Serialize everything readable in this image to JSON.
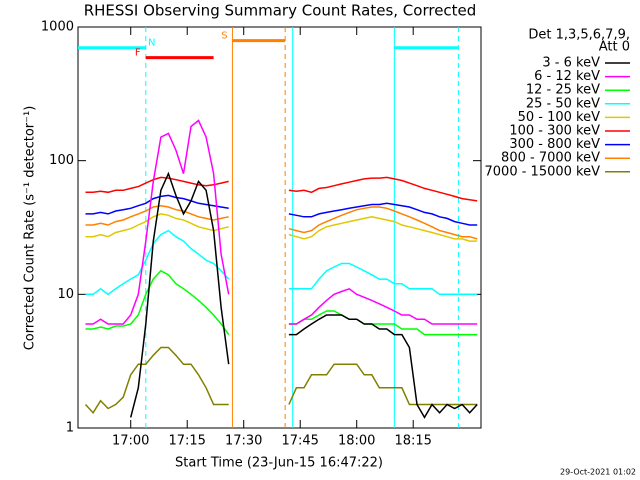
{
  "chart_data": {
    "type": "line",
    "title": "RHESSI Observing Summary Count Rates, Corrected",
    "xlabel": "Start Time (23-Jun-15 16:47:22)",
    "ylabel": "Corrected Count Rate (s⁻¹ detector⁻¹)",
    "legend_title": [
      "Det 1,3,5,6,7,9,",
      "Att 0"
    ],
    "footer": "29-Oct-2021 01:02",
    "log_y": true,
    "legend": "right",
    "xlim": [
      46,
      153
    ],
    "ylim": [
      1,
      1000
    ],
    "xticks": [
      {
        "value": 60,
        "label": "17:00"
      },
      {
        "value": 75,
        "label": "17:15"
      },
      {
        "value": 90,
        "label": "17:30"
      },
      {
        "value": 105,
        "label": "17:45"
      },
      {
        "value": 120,
        "label": "18:00"
      },
      {
        "value": 135,
        "label": "18:15"
      }
    ],
    "yticks": [
      1,
      10,
      100,
      1000
    ],
    "x": [
      48,
      50,
      52,
      54,
      56,
      58,
      60,
      62,
      64,
      66,
      68,
      70,
      72,
      74,
      76,
      78,
      80,
      82,
      84,
      86,
      88,
      90,
      92,
      94,
      96,
      98,
      100,
      102,
      104,
      106,
      108,
      110,
      112,
      114,
      116,
      118,
      120,
      122,
      124,
      126,
      128,
      130,
      132,
      134,
      136,
      138,
      140,
      142,
      144,
      146,
      148,
      150,
      152
    ],
    "series": [
      {
        "name": "3 - 6 keV",
        "color": "#000000",
        "values": [
          null,
          null,
          null,
          null,
          null,
          null,
          1.2,
          2,
          6,
          25,
          60,
          80,
          55,
          40,
          50,
          70,
          60,
          30,
          8,
          3,
          null,
          null,
          null,
          null,
          null,
          null,
          null,
          5,
          5,
          5.5,
          6,
          6.5,
          7,
          7,
          7,
          6.5,
          6.5,
          6,
          6,
          5.5,
          5.5,
          5,
          5,
          4,
          1.5,
          1.2,
          1.5,
          1.3,
          1.5,
          1.4,
          1.5,
          1.3,
          1.5
        ]
      },
      {
        "name": "6 - 12 keV",
        "color": "#ff00ff",
        "values": [
          6,
          6,
          6.5,
          6,
          6,
          6,
          7,
          10,
          25,
          70,
          150,
          160,
          120,
          80,
          180,
          200,
          150,
          80,
          20,
          10,
          null,
          null,
          null,
          null,
          null,
          null,
          null,
          6,
          6,
          6.5,
          7,
          8,
          9,
          10,
          10.5,
          11,
          10,
          9.5,
          9,
          8.5,
          8,
          7.5,
          7,
          7,
          6.5,
          6.5,
          6,
          6,
          6,
          6,
          6,
          6,
          6
        ]
      },
      {
        "name": "12 - 25 keV",
        "color": "#00ff00",
        "values": [
          5.5,
          5.5,
          5.7,
          5.5,
          5.8,
          5.8,
          6,
          7,
          10,
          13,
          15,
          14,
          12,
          11,
          10,
          9,
          8,
          7,
          6,
          5,
          null,
          null,
          null,
          null,
          null,
          null,
          null,
          6,
          6,
          6.5,
          6.5,
          7,
          7.5,
          7.5,
          7,
          6.5,
          6.5,
          6,
          6,
          6,
          6,
          6,
          5.5,
          5.5,
          5.5,
          5,
          5,
          5,
          5,
          5,
          5,
          5,
          5
        ]
      },
      {
        "name": "25 - 50 keV",
        "color": "#00ffff",
        "values": [
          10,
          10,
          11,
          10,
          11,
          12,
          13,
          14,
          18,
          24,
          28,
          30,
          27,
          25,
          22,
          20,
          18,
          17,
          15,
          13,
          null,
          null,
          null,
          null,
          null,
          null,
          null,
          11,
          11,
          11,
          11,
          13,
          15,
          16,
          17,
          17,
          16,
          15,
          14,
          13,
          13,
          12,
          12,
          11,
          11,
          11,
          11,
          10,
          10,
          10,
          10,
          10,
          10
        ]
      },
      {
        "name": "50 - 100 keV",
        "color": "#e0c800",
        "values": [
          27,
          27,
          28,
          27,
          29,
          30,
          31,
          33,
          35,
          38,
          40,
          39,
          37,
          36,
          34,
          32,
          31,
          30,
          31,
          32,
          null,
          null,
          null,
          null,
          null,
          null,
          null,
          28,
          27,
          26,
          27,
          30,
          32,
          33,
          34,
          35,
          36,
          37,
          38,
          37,
          36,
          35,
          33,
          32,
          31,
          30,
          29,
          28,
          27,
          26,
          26,
          25,
          25
        ]
      },
      {
        "name": "100 - 300 keV",
        "color": "#ff0000",
        "values": [
          58,
          58,
          59,
          58,
          60,
          60,
          62,
          64,
          68,
          72,
          75,
          74,
          72,
          70,
          68,
          66,
          65,
          66,
          68,
          70,
          null,
          null,
          null,
          null,
          null,
          null,
          null,
          60,
          59,
          60,
          58,
          62,
          63,
          65,
          67,
          69,
          71,
          73,
          74,
          74,
          75,
          73,
          71,
          68,
          65,
          62,
          60,
          58,
          56,
          54,
          52,
          51,
          50
        ]
      },
      {
        "name": "300 - 800 keV",
        "color": "#0000ff",
        "values": [
          40,
          40,
          41,
          40,
          42,
          43,
          44,
          46,
          48,
          52,
          54,
          55,
          53,
          52,
          50,
          48,
          47,
          46,
          45,
          44,
          null,
          null,
          null,
          null,
          null,
          null,
          null,
          40,
          39,
          38,
          38,
          40,
          41,
          42,
          43,
          44,
          45,
          46,
          47,
          47,
          48,
          47,
          46,
          45,
          43,
          41,
          40,
          38,
          37,
          35,
          34,
          33,
          33
        ]
      },
      {
        "name": "800 - 7000 keV",
        "color": "#ff8000",
        "values": [
          33,
          33,
          34,
          33,
          35,
          36,
          38,
          40,
          42,
          45,
          46,
          45,
          43,
          42,
          40,
          38,
          37,
          36,
          37,
          38,
          null,
          null,
          null,
          null,
          null,
          null,
          null,
          31,
          30,
          29,
          30,
          33,
          35,
          37,
          39,
          41,
          43,
          44,
          45,
          45,
          44,
          42,
          40,
          38,
          36,
          34,
          32,
          30,
          29,
          28,
          27,
          27,
          26
        ]
      },
      {
        "name": "7000 - 15000 keV",
        "color": "#808000",
        "values": [
          1.5,
          1.3,
          1.6,
          1.4,
          1.5,
          1.7,
          2.5,
          3,
          3,
          3.5,
          4,
          4,
          3.5,
          3,
          3,
          2.5,
          2,
          1.5,
          1.5,
          1.5,
          null,
          null,
          null,
          null,
          null,
          null,
          null,
          1.5,
          2,
          2,
          2.5,
          2.5,
          2.5,
          3,
          3,
          3,
          3,
          2.5,
          2.5,
          2,
          2,
          2,
          2,
          1.5,
          1.5,
          1.5,
          1.5,
          1.5,
          1.5,
          1.5,
          1.5,
          1.5,
          1.5
        ]
      }
    ],
    "flags": [
      {
        "label": "N",
        "color": "#00ffff",
        "level": 700,
        "ranges": [
          [
            46,
            64
          ],
          [
            130,
            147
          ]
        ]
      },
      {
        "label": "S",
        "color": "#ff8000",
        "level": 790,
        "ranges": [
          [
            87,
            101
          ]
        ]
      },
      {
        "label": "F",
        "color": "#ff0000",
        "level": 590,
        "ranges": [
          [
            64,
            82
          ]
        ]
      }
    ],
    "vlines": [
      {
        "x": 64,
        "color": "#00ffff",
        "dashed": true
      },
      {
        "x": 147,
        "color": "#00ffff",
        "dashed": true
      },
      {
        "x": 103,
        "color": "#00ffff",
        "dashed": false
      },
      {
        "x": 130,
        "color": "#00ffff",
        "dashed": false
      },
      {
        "x": 87,
        "color": "#ff8000",
        "dashed": false
      },
      {
        "x": 101,
        "color": "#ff8000",
        "dashed": true
      }
    ]
  }
}
